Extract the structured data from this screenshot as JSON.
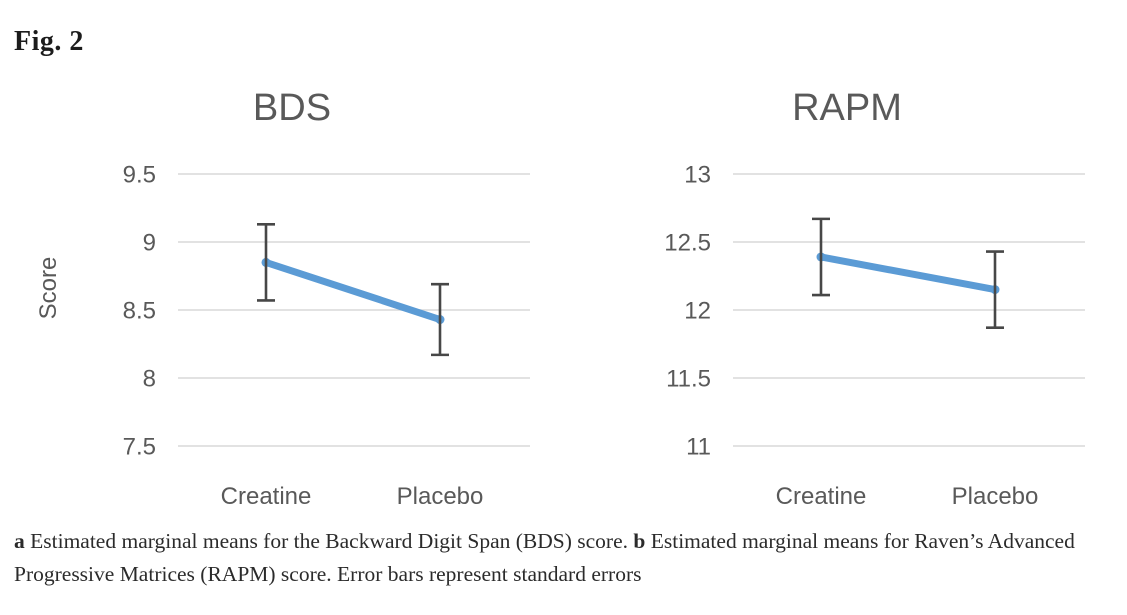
{
  "figure": {
    "label": "Fig. 2"
  },
  "colors": {
    "line": "#5B9BD5",
    "error_bar": "#474747",
    "gridline": "#d8d8d8",
    "axis_text": "#595959",
    "title_text": "#595959",
    "caption_text": "#2b2b2b",
    "background": "#ffffff"
  },
  "chart_data": [
    {
      "type": "line",
      "title": "BDS",
      "ylabel": "Score",
      "xlabel": "",
      "categories": [
        "Creatine",
        "Placebo"
      ],
      "series": [
        {
          "name": "Estimated marginal mean",
          "values": [
            8.85,
            8.43
          ],
          "errors": [
            0.28,
            0.26
          ]
        }
      ],
      "yticks": [
        9.5,
        9,
        8.5,
        8,
        7.5
      ],
      "ylim": [
        7.5,
        9.5
      ],
      "grid": true,
      "legend": false
    },
    {
      "type": "line",
      "title": "RAPM",
      "ylabel": "",
      "xlabel": "",
      "categories": [
        "Creatine",
        "Placebo"
      ],
      "series": [
        {
          "name": "Estimated marginal mean",
          "values": [
            12.39,
            12.15
          ],
          "errors": [
            0.28,
            0.28
          ]
        }
      ],
      "yticks": [
        13,
        12.5,
        12,
        11.5,
        11
      ],
      "ylim": [
        11,
        13
      ],
      "grid": true,
      "legend": false
    }
  ],
  "caption": {
    "segments": [
      {
        "text": "a",
        "bold": true
      },
      {
        "text": " Estimated marginal means for the Backward Digit Span (BDS) score. ",
        "bold": false
      },
      {
        "text": "b",
        "bold": true
      },
      {
        "text": " Estimated marginal means for Raven’s Advanced Progressive Matrices (RAPM) score. Error bars represent standard errors",
        "bold": false
      }
    ]
  }
}
